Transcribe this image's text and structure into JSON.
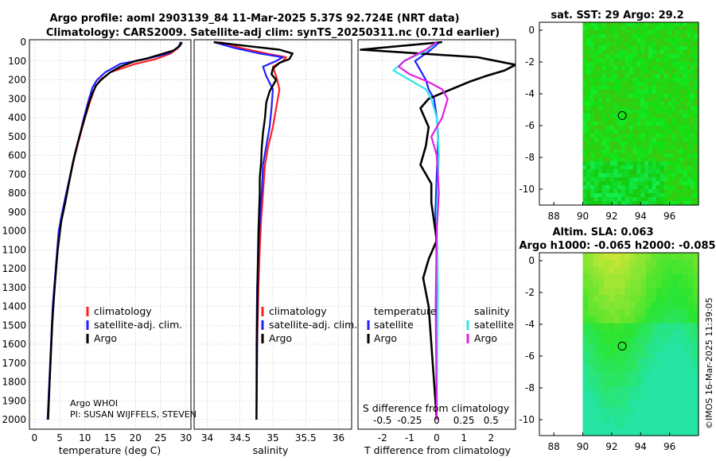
{
  "title": {
    "line1": "Argo profile: aoml 2903139_84 11-Mar-2025 5.37S 92.724E (NRT data)",
    "line2": "Climatology: CARS2009. Satellite-adj clim: synTS_20250311.nc (0.71d earlier)"
  },
  "colors": {
    "climatology": "#ff2020",
    "satellite_adj": "#2020ff",
    "argo": "#000000",
    "sat_temp": "#2ee8e8",
    "argo_sal": "#e020e0"
  },
  "credit": {
    "source": "Argo WHOI",
    "pi": "PI: SUSAN WIJFFELS, STEVEN"
  },
  "stamp": "©IMOS 16-Mar-2025 11:39:05",
  "chart_data": [
    {
      "type": "line",
      "name": "temperature-profile",
      "xlabel": "temperature (deg C)",
      "ylabel": "",
      "xlim": [
        -1,
        31
      ],
      "ylim": [
        2050,
        0
      ],
      "xticks": [
        0,
        5,
        10,
        15,
        20,
        25,
        30
      ],
      "yticks": [
        0,
        100,
        200,
        300,
        400,
        500,
        600,
        700,
        800,
        900,
        1000,
        1100,
        1200,
        1300,
        1400,
        1500,
        1600,
        1700,
        1800,
        1900,
        2000
      ],
      "legend": [
        "climatology",
        "satellite-adj. clim.",
        "Argo"
      ],
      "series": [
        {
          "name": "climatology",
          "x": [
            28.9,
            28.5,
            27,
            24,
            20,
            15,
            13,
            12,
            11.2,
            10,
            9,
            8,
            7.2,
            6.4,
            5.6,
            4.9,
            4.3,
            3.7,
            3.2,
            2.6
          ],
          "y": [
            0,
            30,
            60,
            90,
            115,
            160,
            200,
            240,
            300,
            400,
            500,
            600,
            700,
            800,
            900,
            1000,
            1200,
            1400,
            1700,
            2000
          ]
        },
        {
          "name": "satellite-adj. clim.",
          "x": [
            29.1,
            28.4,
            26.5,
            22,
            17,
            14,
            12.4,
            11.5,
            10.8,
            9.8,
            8.9,
            7.9,
            7.1,
            6.3,
            5.5,
            4.8,
            4.2,
            3.6,
            3.1,
            2.6
          ],
          "y": [
            0,
            30,
            60,
            90,
            115,
            160,
            200,
            240,
            300,
            400,
            500,
            600,
            700,
            800,
            900,
            1000,
            1200,
            1400,
            1700,
            2000
          ]
        },
        {
          "name": "Argo",
          "x": [
            29.2,
            28.8,
            27.5,
            25,
            22.5,
            20,
            17,
            15,
            13.2,
            12.2,
            11.5,
            10.8,
            10.2,
            9.4,
            8.6,
            7.6,
            6.8,
            6.1,
            5.3,
            4.6,
            4.0,
            3.5,
            3.0,
            2.7
          ],
          "y": [
            0,
            20,
            45,
            65,
            85,
            100,
            130,
            160,
            200,
            230,
            270,
            320,
            380,
            450,
            530,
            640,
            750,
            850,
            950,
            1100,
            1300,
            1500,
            1800,
            2000
          ]
        }
      ]
    },
    {
      "type": "line",
      "name": "salinity-profile",
      "xlabel": "salinity",
      "xlim": [
        33.8,
        36.2
      ],
      "ylim": [
        2050,
        0
      ],
      "xticks": [
        34,
        34.5,
        35,
        35.5,
        36
      ],
      "legend": [
        "climatology",
        "satellite-adj. clim.",
        "Argo"
      ],
      "series": [
        {
          "name": "climatology",
          "x": [
            34.2,
            34.5,
            34.9,
            35.2,
            35.15,
            35.0,
            35.05,
            35.1,
            35.05,
            35.0,
            34.93,
            34.88,
            34.85,
            34.82,
            34.8,
            34.78,
            34.76,
            34.75
          ],
          "y": [
            0,
            30,
            60,
            80,
            100,
            130,
            180,
            250,
            350,
            450,
            550,
            650,
            800,
            950,
            1100,
            1300,
            1600,
            2000
          ]
        },
        {
          "name": "satellite-adj. clim.",
          "x": [
            34.1,
            34.4,
            34.8,
            35.15,
            35.05,
            34.85,
            34.9,
            35.0,
            34.98,
            34.95,
            34.9,
            34.85,
            34.83,
            34.8,
            34.78,
            34.76,
            34.75,
            34.75
          ],
          "y": [
            0,
            30,
            60,
            80,
            100,
            130,
            180,
            250,
            350,
            450,
            550,
            650,
            800,
            950,
            1100,
            1300,
            1600,
            2000
          ]
        },
        {
          "name": "Argo",
          "x": [
            34.1,
            34.6,
            35.1,
            35.3,
            35.25,
            35.1,
            35.0,
            34.98,
            35.05,
            34.95,
            34.9,
            34.88,
            34.85,
            34.83,
            34.82,
            34.8,
            34.8,
            34.79,
            34.78,
            34.77,
            34.76,
            34.75
          ],
          "y": [
            0,
            20,
            40,
            60,
            90,
            110,
            140,
            170,
            200,
            260,
            320,
            400,
            480,
            560,
            640,
            720,
            800,
            900,
            1000,
            1200,
            1500,
            2000
          ]
        }
      ]
    },
    {
      "type": "line",
      "name": "difference-profile",
      "xlabel": "T difference from climatology",
      "xlabel_top": "S difference from climatology",
      "xlim": [
        -2.9,
        2.9
      ],
      "ylim": [
        2050,
        0
      ],
      "xticks": [
        -2,
        -1,
        0,
        1,
        2
      ],
      "sticks": [
        "-0.5",
        "-0.25",
        "0",
        "0.25",
        "0.5"
      ],
      "legend_titles": [
        "temperature",
        "salinity"
      ],
      "legend": [
        "satellite",
        "Argo",
        "satellite",
        "Argo"
      ],
      "series": [
        {
          "name": "temperature satellite",
          "x": [
            0.1,
            -0.3,
            -0.8,
            -0.6,
            -0.4,
            -0.3,
            -0.1,
            0,
            0.05,
            0,
            -0.05,
            0,
            0
          ],
          "y": [
            0,
            50,
            100,
            150,
            200,
            250,
            300,
            400,
            500,
            700,
            900,
            1200,
            2000
          ]
        },
        {
          "name": "temperature Argo",
          "x": [
            0.2,
            -2.8,
            1.5,
            2.9,
            2.5,
            1.8,
            1.2,
            0.7,
            0.2,
            -0.3,
            -0.6,
            -0.3,
            -0.4,
            -0.6,
            -0.2,
            -0.2,
            -0.1,
            0,
            -0.3,
            -0.5,
            -0.3,
            -0.2,
            -0.1,
            0
          ],
          "y": [
            0,
            40,
            80,
            120,
            150,
            180,
            210,
            240,
            270,
            300,
            350,
            450,
            550,
            650,
            750,
            850,
            950,
            1050,
            1150,
            1250,
            1400,
            1600,
            1800,
            2000
          ]
        },
        {
          "name": "salinity satellite",
          "sx": [
            0,
            -0.05,
            -0.15,
            -0.3,
            -0.4,
            -0.25,
            -0.1,
            -0.05,
            0,
            0.02,
            0,
            0.01,
            0
          ],
          "y": [
            0,
            30,
            60,
            100,
            150,
            200,
            250,
            300,
            400,
            600,
            900,
            1300,
            2000
          ]
        },
        {
          "name": "salinity Argo",
          "sx": [
            0,
            -0.1,
            -0.2,
            -0.3,
            -0.35,
            -0.25,
            -0.08,
            0.05,
            0.1,
            0.05,
            -0.05,
            0,
            0.02,
            0,
            -0.01,
            0
          ],
          "y": [
            0,
            40,
            70,
            100,
            130,
            170,
            210,
            250,
            300,
            400,
            500,
            600,
            800,
            1000,
            1400,
            2000
          ]
        }
      ]
    },
    {
      "type": "heatmap",
      "name": "sst-map",
      "title": "sat. SST: 29 Argo: 29.2",
      "xticks": [
        88,
        90,
        92,
        94,
        96
      ],
      "yticks": [
        0,
        -2,
        -4,
        -6,
        -8,
        -10
      ],
      "xlim": [
        87,
        98
      ],
      "ylim": [
        -11,
        0.5
      ],
      "argo_position": [
        92.724,
        -5.37
      ]
    },
    {
      "type": "heatmap",
      "name": "sla-map",
      "title": "Altim. SLA: 0.063",
      "subtitle": "Argo h1000: -0.065 h2000: -0.085",
      "xticks": [
        88,
        90,
        92,
        94,
        96
      ],
      "yticks": [
        0,
        -2,
        -4,
        -6,
        -8,
        -10
      ],
      "xlim": [
        87,
        98
      ],
      "ylim": [
        -11,
        0.5
      ],
      "argo_position": [
        92.724,
        -5.37
      ]
    }
  ]
}
